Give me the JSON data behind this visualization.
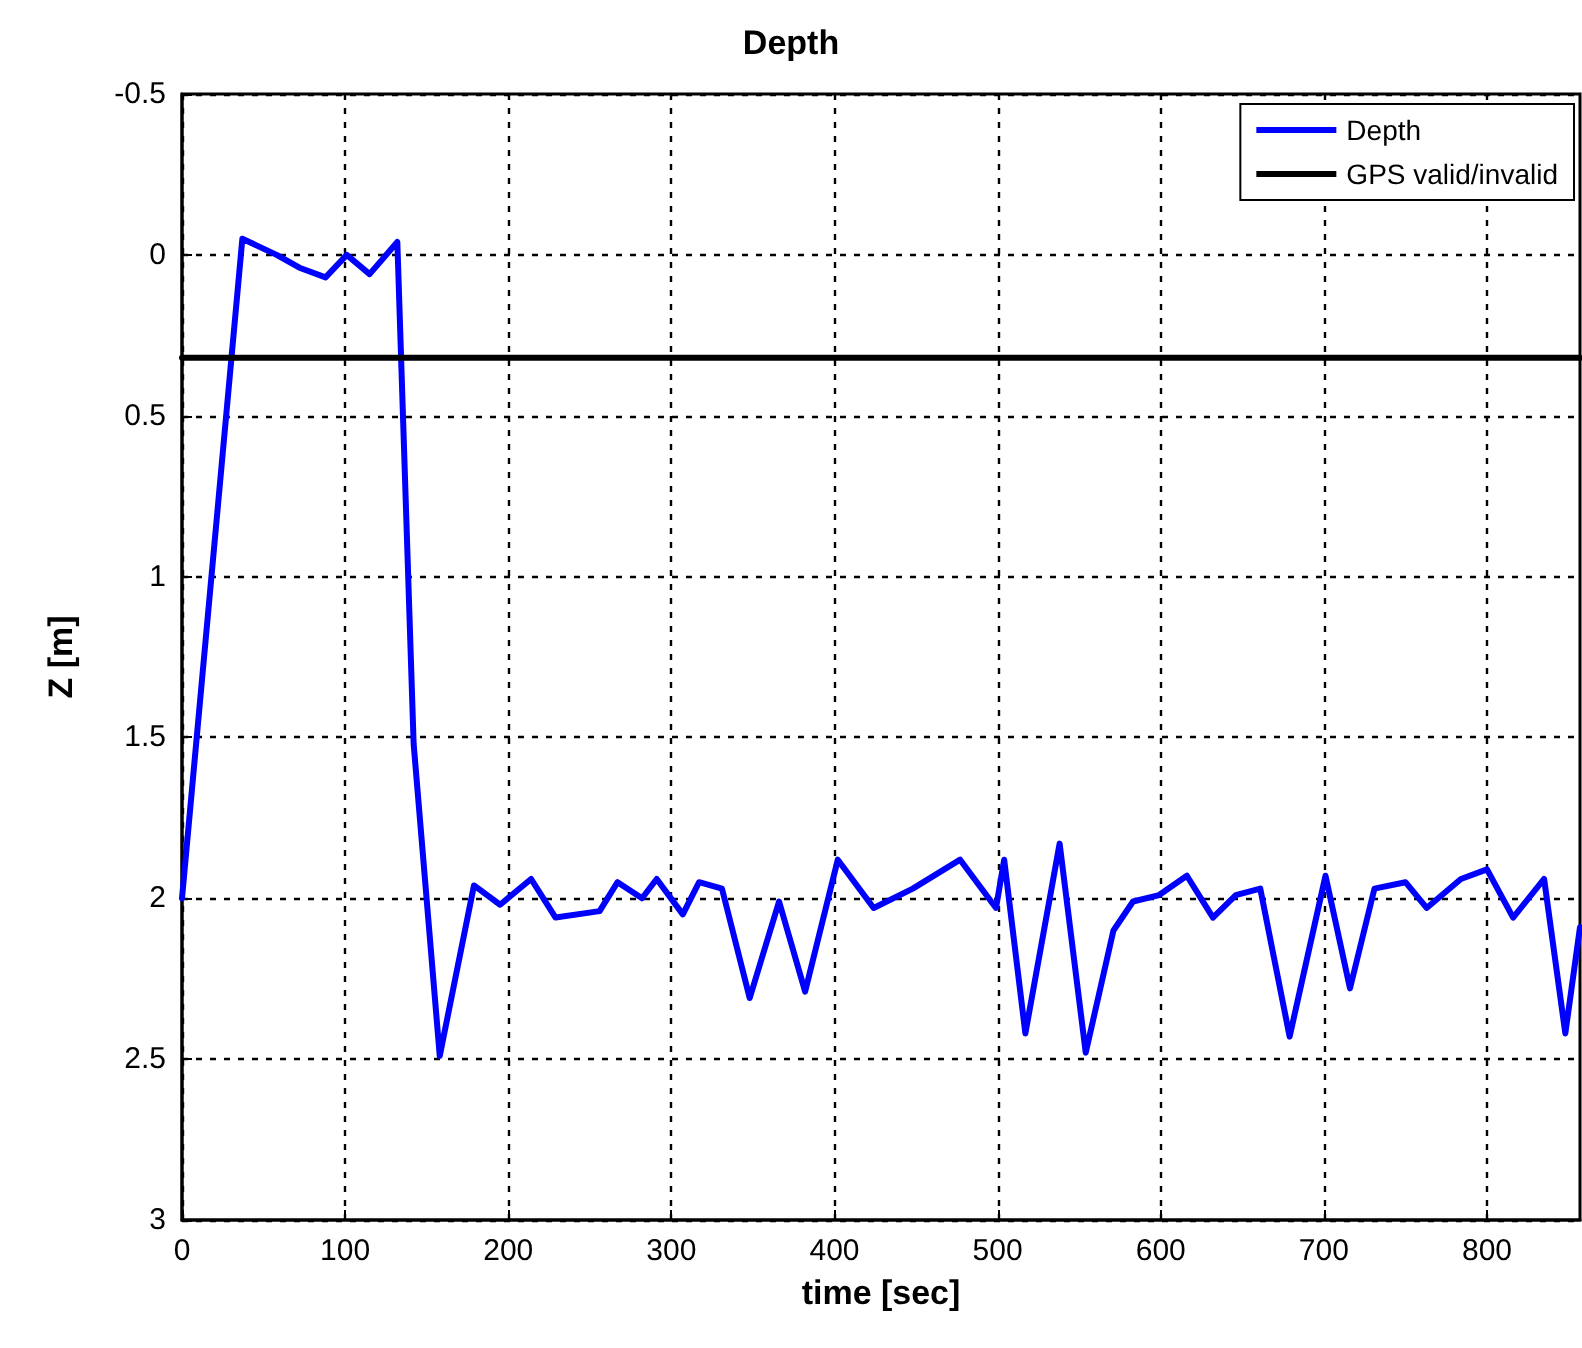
{
  "chart_data": {
    "type": "line",
    "title": "Depth",
    "xlabel": "time [sec]",
    "ylabel": "Z [m]",
    "series": [
      {
        "name": "Depth",
        "color": "#0000ff",
        "x": [
          0,
          37,
          58,
          72,
          88,
          101,
          115,
          132,
          142,
          158,
          179,
          195,
          214,
          229,
          256,
          267,
          282,
          291,
          307,
          317,
          331,
          348,
          366,
          382,
          402,
          424,
          448,
          477,
          499,
          504,
          517,
          538,
          554,
          571,
          583,
          599,
          616,
          632,
          646,
          661,
          679,
          701,
          716,
          731,
          750,
          763,
          784,
          800,
          816,
          835,
          848,
          857
        ],
        "values": [
          2.0,
          -0.05,
          0,
          0.04,
          0.07,
          0,
          0.06,
          -0.04,
          1.52,
          2.49,
          1.96,
          2.02,
          1.94,
          2.06,
          2.04,
          1.95,
          2.0,
          1.94,
          2.05,
          1.95,
          1.97,
          2.31,
          2.01,
          2.29,
          1.88,
          2.03,
          1.97,
          1.88,
          2.03,
          1.88,
          2.42,
          1.83,
          2.48,
          2.1,
          2.01,
          1.99,
          1.93,
          2.06,
          1.99,
          1.97,
          2.43,
          1.93,
          2.28,
          1.97,
          1.95,
          2.03,
          1.94,
          1.91,
          2.06,
          1.94,
          2.42,
          2.09
        ]
      },
      {
        "name": "GPS valid/invalid",
        "color": "#000000",
        "x": [
          0,
          857
        ],
        "values": [
          0.32,
          0.32
        ]
      }
    ],
    "xlim": [
      0,
      857
    ],
    "xticks": [
      0,
      100,
      200,
      300,
      400,
      500,
      600,
      700,
      800
    ],
    "ylim": [
      3,
      -0.5
    ],
    "yticks": [
      -0.5,
      0,
      0.5,
      1,
      1.5,
      2,
      2.5,
      3
    ],
    "grid": true,
    "legend": "top right",
    "marker": "none",
    "line_style": "solid"
  }
}
